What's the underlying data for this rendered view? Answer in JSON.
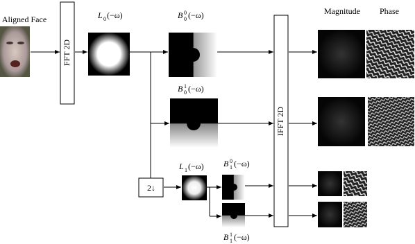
{
  "input": {
    "label": "Aligned Face"
  },
  "fft": {
    "label": "FFT 2D"
  },
  "ifft": {
    "label": "IFFT 2D"
  },
  "downsample": {
    "label": "2↓"
  },
  "columns": {
    "magnitude": "Magnitude",
    "phase": "Phase"
  },
  "filters": {
    "L0": {
      "symbol": "L",
      "sub": "0",
      "arg": "(−ω)"
    },
    "B00": {
      "symbol": "B",
      "sub": "0",
      "sup": "0",
      "arg": "(−ω)"
    },
    "B01": {
      "symbol": "B",
      "sub": "0",
      "sup": "1",
      "arg": "(−ω)"
    },
    "L1": {
      "symbol": "L",
      "sub": "1",
      "arg": "(−ω)"
    },
    "B10": {
      "symbol": "B",
      "sub": "1",
      "sup": "0",
      "arg": "(−ω)"
    },
    "B11": {
      "symbol": "B",
      "sub": "1",
      "sup": "1",
      "arg": "(−ω)"
    }
  }
}
